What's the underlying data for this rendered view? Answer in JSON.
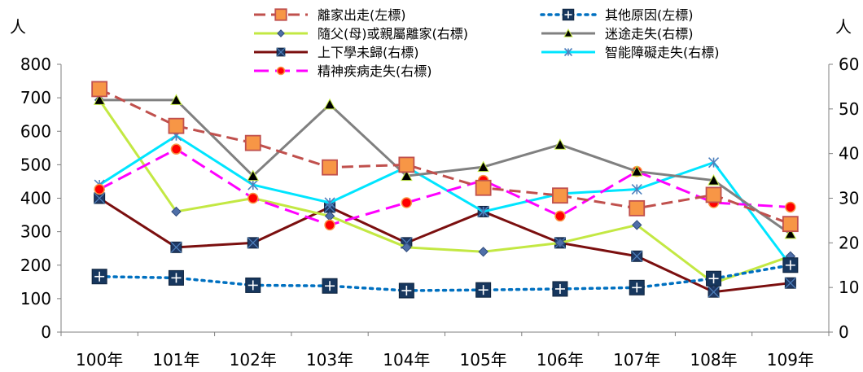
{
  "chart_data": {
    "type": "line",
    "left_axis_label": "人",
    "right_axis_label": "人",
    "categories": [
      "100年",
      "101年",
      "102年",
      "103年",
      "104年",
      "105年",
      "106年",
      "107年",
      "108年",
      "109年"
    ],
    "left_ylim": [
      0,
      800
    ],
    "left_ticks": [
      0,
      100,
      200,
      300,
      400,
      500,
      600,
      700,
      800
    ],
    "right_ylim": [
      0,
      60
    ],
    "right_ticks": [
      0,
      10,
      20,
      30,
      40,
      50,
      60
    ],
    "grid": false,
    "legend_placement": "top",
    "series": [
      {
        "name": "離家出走(左標)",
        "axis": "left",
        "color": "#c0504d",
        "dash": "dashed",
        "marker": "square",
        "values": [
          726,
          616,
          565,
          492,
          500,
          431,
          408,
          370,
          410,
          323
        ]
      },
      {
        "name": "其他原因(左標)",
        "axis": "left",
        "color": "#0070c0",
        "dash": "dotted",
        "marker": "square-plus",
        "values": [
          166,
          162,
          140,
          138,
          124,
          126,
          129,
          133,
          160,
          200
        ]
      },
      {
        "name": "隨父(母)或親屬離家(右標)",
        "axis": "right",
        "color": "#c3e843",
        "dash": "solid",
        "marker": "diamond",
        "values": [
          52,
          27,
          30,
          26,
          19,
          18,
          20,
          24,
          11,
          17
        ]
      },
      {
        "name": "迷途走失(右標)",
        "axis": "right",
        "color": "#808080",
        "dash": "solid",
        "marker": "triangle",
        "values": [
          52,
          52,
          35,
          51,
          35,
          37,
          42,
          36,
          34,
          22
        ]
      },
      {
        "name": "上下學未歸(右標)",
        "axis": "right",
        "color": "#7b0f0f",
        "dash": "solid",
        "marker": "square-x",
        "values": [
          30,
          19,
          20,
          28,
          20,
          27,
          20,
          17,
          9,
          11
        ]
      },
      {
        "name": "智能障礙走失(右標)",
        "axis": "right",
        "color": "#00e5ff",
        "dash": "solid",
        "marker": "asterisk",
        "values": [
          33,
          44,
          33,
          29,
          37,
          27,
          31,
          32,
          38,
          15
        ]
      },
      {
        "name": "精神疾病走失(右標)",
        "axis": "right",
        "color": "#ff00ff",
        "dash": "longdash",
        "marker": "circle",
        "values": [
          32,
          41,
          30,
          24,
          29,
          34,
          26,
          36,
          29,
          28
        ]
      }
    ]
  }
}
